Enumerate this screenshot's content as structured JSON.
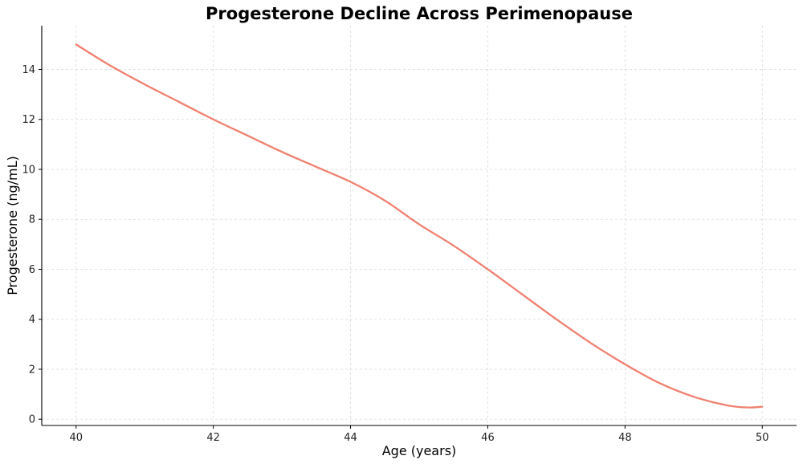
{
  "chart_data": {
    "type": "line",
    "title": "Progesterone Decline Across Perimenopause",
    "xlabel": "Age (years)",
    "ylabel": "Progesterone (ng/mL)",
    "xlim": [
      39.5,
      50.5
    ],
    "ylim": [
      -0.25,
      15.75
    ],
    "xticks": [
      40,
      42,
      44,
      46,
      48,
      50
    ],
    "yticks": [
      0,
      2,
      4,
      6,
      8,
      10,
      12,
      14
    ],
    "grid": true,
    "legend": "none",
    "series": [
      {
        "color": "#f08070",
        "x": [
          40,
          40.5,
          41,
          41.5,
          42,
          42.5,
          43,
          43.5,
          44,
          44.5,
          45,
          45.5,
          46,
          46.5,
          47,
          47.5,
          48,
          48.5,
          49,
          49.5,
          49.8,
          50
        ],
        "y": [
          15.0,
          14.15,
          13.4,
          12.7,
          12.0,
          11.35,
          10.7,
          10.1,
          9.5,
          8.75,
          7.8,
          6.95,
          6.0,
          5.0,
          4.0,
          3.05,
          2.2,
          1.45,
          0.9,
          0.55,
          0.47,
          0.5
        ]
      }
    ]
  }
}
